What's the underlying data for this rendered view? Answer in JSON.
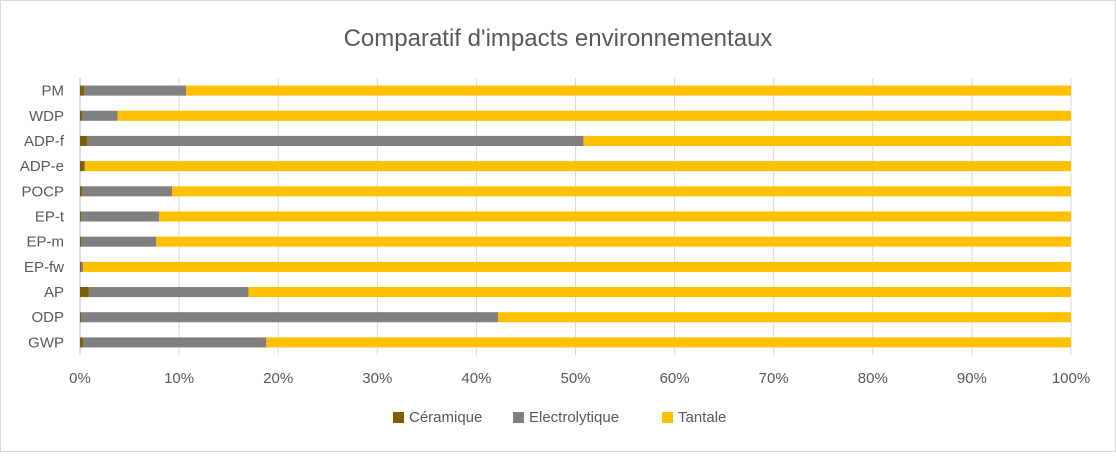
{
  "chart_data": {
    "type": "bar",
    "orientation": "horizontal",
    "stacked": "percent",
    "title": "Comparatif d'impacts environnementaux",
    "categories": [
      "PM",
      "WDP",
      "ADP-f",
      "ADP-e",
      "POCP",
      "EP-t",
      "EP-m",
      "EP-fw",
      "AP",
      "ODP",
      "GWP"
    ],
    "series": [
      {
        "name": "Céramique",
        "color": "#7f6000",
        "values": [
          0.4,
          0.2,
          0.7,
          0.4,
          0.2,
          0.1,
          0.1,
          0.1,
          0.9,
          0.1,
          0.3
        ]
      },
      {
        "name": "Electrolytique",
        "color": "#808080",
        "values": [
          10.3,
          3.6,
          50.1,
          0.1,
          9.1,
          7.9,
          7.6,
          0.2,
          16.1,
          42.1,
          18.5
        ]
      },
      {
        "name": "Tantale",
        "color": "#ffc000",
        "values": [
          89.3,
          96.2,
          49.2,
          99.5,
          90.7,
          92.0,
          92.3,
          99.7,
          83.0,
          57.8,
          81.2
        ]
      }
    ],
    "xlim": [
      0,
      100
    ],
    "xticks": [
      "0%",
      "10%",
      "20%",
      "30%",
      "40%",
      "50%",
      "60%",
      "70%",
      "80%",
      "90%",
      "100%"
    ],
    "xgrid": true,
    "legend": "bottom"
  }
}
